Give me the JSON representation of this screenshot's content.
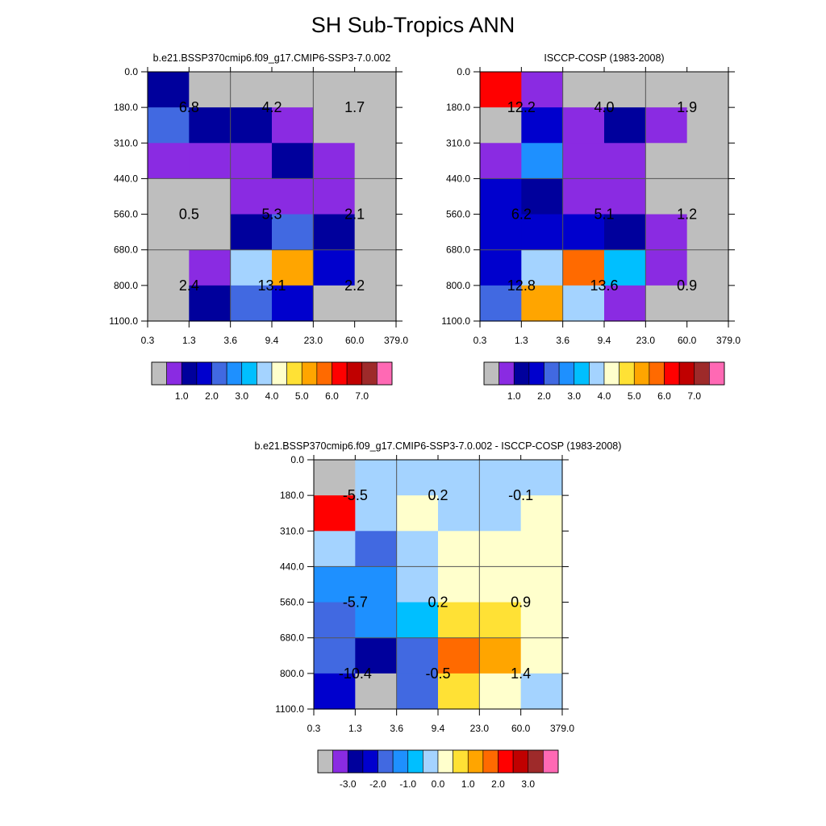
{
  "title": "SH Sub-Tropics ANN",
  "chart_data": [
    {
      "type": "heatmap",
      "title": "b.e21.BSSP370cmip6.f09_g17.CMIP6-SSP3-7.0.002",
      "x_ticks": [
        "0.3",
        "1.3",
        "3.6",
        "9.4",
        "23.0",
        "60.0",
        "379.0"
      ],
      "y_ticks": [
        "0.0",
        "180.0",
        "310.0",
        "440.0",
        "560.0",
        "680.0",
        "800.0",
        "1100.0"
      ],
      "cell_colors": [
        [
          "#00009c",
          "#bebebe",
          "#bebebe",
          "#bebebe",
          "#bebebe",
          "#bebebe"
        ],
        [
          "#4169e1",
          "#00009c",
          "#00009c",
          "#8a2be2",
          "#bebebe",
          "#bebebe"
        ],
        [
          "#8a2be2",
          "#8a2be2",
          "#8a2be2",
          "#00009c",
          "#8a2be2",
          "#bebebe"
        ],
        [
          "#bebebe",
          "#bebebe",
          "#8a2be2",
          "#8a2be2",
          "#8a2be2",
          "#bebebe"
        ],
        [
          "#bebebe",
          "#bebebe",
          "#00009c",
          "#4169e1",
          "#00009c",
          "#bebebe"
        ],
        [
          "#bebebe",
          "#8a2be2",
          "#a4d3ff",
          "#ffa500",
          "#0000cd",
          "#bebebe"
        ],
        [
          "#bebebe",
          "#00009c",
          "#4169e1",
          "#0000cd",
          "#bebebe",
          "#bebebe"
        ]
      ],
      "sum_labels": [
        {
          "col": 0,
          "row": 1,
          "text": "6.8"
        },
        {
          "col": 1,
          "row": 1,
          "text": "4.2"
        },
        {
          "col": 2,
          "row": 1,
          "text": "1.7"
        },
        {
          "col": 0,
          "row": 4,
          "text": "0.5"
        },
        {
          "col": 1,
          "row": 4,
          "text": "5.3"
        },
        {
          "col": 2,
          "row": 4,
          "text": "2.1"
        },
        {
          "col": 0,
          "row": 6,
          "text": "2.4"
        },
        {
          "col": 1,
          "row": 6,
          "text": "13.1"
        },
        {
          "col": 2,
          "row": 6,
          "text": "2.2"
        }
      ],
      "colorbar": {
        "colors": [
          "#bebebe",
          "#8a2be2",
          "#00009c",
          "#0000cd",
          "#4169e1",
          "#1e90ff",
          "#00bfff",
          "#a4d3ff",
          "#ffffcc",
          "#ffe135",
          "#ffa500",
          "#ff6a00",
          "#ff0000",
          "#c00000",
          "#9e2a2a",
          "#ff69b4"
        ],
        "labels": [
          "1.0",
          "2.0",
          "3.0",
          "4.0",
          "5.0",
          "6.0",
          "7.0"
        ]
      }
    },
    {
      "type": "heatmap",
      "title": "ISCCP-COSP (1983-2008)",
      "x_ticks": [
        "0.3",
        "1.3",
        "3.6",
        "9.4",
        "23.0",
        "60.0",
        "379.0"
      ],
      "y_ticks": [
        "0.0",
        "180.0",
        "310.0",
        "440.0",
        "560.0",
        "680.0",
        "800.0",
        "1100.0"
      ],
      "cell_colors": [
        [
          "#ff0000",
          "#8a2be2",
          "#bebebe",
          "#bebebe",
          "#bebebe",
          "#bebebe"
        ],
        [
          "#bebebe",
          "#0000cd",
          "#8a2be2",
          "#00009c",
          "#8a2be2",
          "#bebebe"
        ],
        [
          "#8a2be2",
          "#1e90ff",
          "#8a2be2",
          "#8a2be2",
          "#bebebe",
          "#bebebe"
        ],
        [
          "#0000cd",
          "#00009c",
          "#8a2be2",
          "#8a2be2",
          "#bebebe",
          "#bebebe"
        ],
        [
          "#0000cd",
          "#0000cd",
          "#0000cd",
          "#00009c",
          "#8a2be2",
          "#bebebe"
        ],
        [
          "#0000cd",
          "#a4d3ff",
          "#ff6a00",
          "#00bfff",
          "#8a2be2",
          "#bebebe"
        ],
        [
          "#4169e1",
          "#ffa500",
          "#a4d3ff",
          "#8a2be2",
          "#bebebe",
          "#bebebe"
        ]
      ],
      "sum_labels": [
        {
          "col": 0,
          "row": 1,
          "text": "12.2"
        },
        {
          "col": 1,
          "row": 1,
          "text": "4.0"
        },
        {
          "col": 2,
          "row": 1,
          "text": "1.9"
        },
        {
          "col": 0,
          "row": 4,
          "text": "6.2"
        },
        {
          "col": 1,
          "row": 4,
          "text": "5.1"
        },
        {
          "col": 2,
          "row": 4,
          "text": "1.2"
        },
        {
          "col": 0,
          "row": 6,
          "text": "12.8"
        },
        {
          "col": 1,
          "row": 6,
          "text": "13.6"
        },
        {
          "col": 2,
          "row": 6,
          "text": "0.9"
        }
      ],
      "colorbar": {
        "colors": [
          "#bebebe",
          "#8a2be2",
          "#00009c",
          "#0000cd",
          "#4169e1",
          "#1e90ff",
          "#00bfff",
          "#a4d3ff",
          "#ffffcc",
          "#ffe135",
          "#ffa500",
          "#ff6a00",
          "#ff0000",
          "#c00000",
          "#9e2a2a",
          "#ff69b4"
        ],
        "labels": [
          "1.0",
          "2.0",
          "3.0",
          "4.0",
          "5.0",
          "6.0",
          "7.0"
        ]
      }
    },
    {
      "type": "heatmap",
      "title": "b.e21.BSSP370cmip6.f09_g17.CMIP6-SSP3-7.0.002 - ISCCP-COSP (1983-2008)",
      "x_ticks": [
        "0.3",
        "1.3",
        "3.6",
        "9.4",
        "23.0",
        "60.0",
        "379.0"
      ],
      "y_ticks": [
        "0.0",
        "180.0",
        "310.0",
        "440.0",
        "560.0",
        "680.0",
        "800.0",
        "1100.0"
      ],
      "cell_colors": [
        [
          "#bebebe",
          "#a4d3ff",
          "#a4d3ff",
          "#a4d3ff",
          "#a4d3ff",
          "#a4d3ff"
        ],
        [
          "#ff0000",
          "#a4d3ff",
          "#ffffcc",
          "#a4d3ff",
          "#a4d3ff",
          "#ffffcc"
        ],
        [
          "#a4d3ff",
          "#4169e1",
          "#a4d3ff",
          "#ffffcc",
          "#ffffcc",
          "#ffffcc"
        ],
        [
          "#1e90ff",
          "#1e90ff",
          "#a4d3ff",
          "#ffffcc",
          "#ffffcc",
          "#ffffcc"
        ],
        [
          "#4169e1",
          "#1e90ff",
          "#00bfff",
          "#ffe135",
          "#ffe135",
          "#ffffcc"
        ],
        [
          "#4169e1",
          "#00009c",
          "#4169e1",
          "#ff6a00",
          "#ffa500",
          "#ffffcc"
        ],
        [
          "#0000cd",
          "#bebebe",
          "#4169e1",
          "#ffe135",
          "#ffffcc",
          "#a4d3ff"
        ]
      ],
      "sum_labels": [
        {
          "col": 0,
          "row": 1,
          "text": "-5.5"
        },
        {
          "col": 1,
          "row": 1,
          "text": "0.2"
        },
        {
          "col": 2,
          "row": 1,
          "text": "-0.1"
        },
        {
          "col": 0,
          "row": 4,
          "text": "-5.7"
        },
        {
          "col": 1,
          "row": 4,
          "text": "0.2"
        },
        {
          "col": 2,
          "row": 4,
          "text": "0.9"
        },
        {
          "col": 0,
          "row": 6,
          "text": "-10.4"
        },
        {
          "col": 1,
          "row": 6,
          "text": "-0.5"
        },
        {
          "col": 2,
          "row": 6,
          "text": "1.4"
        }
      ],
      "colorbar": {
        "colors": [
          "#bebebe",
          "#8a2be2",
          "#00009c",
          "#0000cd",
          "#4169e1",
          "#1e90ff",
          "#00bfff",
          "#a4d3ff",
          "#ffffcc",
          "#ffe135",
          "#ffa500",
          "#ff6a00",
          "#ff0000",
          "#c00000",
          "#9e2a2a",
          "#ff69b4"
        ],
        "labels": [
          "-3.0",
          "-2.0",
          "-1.0",
          "0.0",
          "1.0",
          "2.0",
          "3.0"
        ]
      }
    }
  ]
}
